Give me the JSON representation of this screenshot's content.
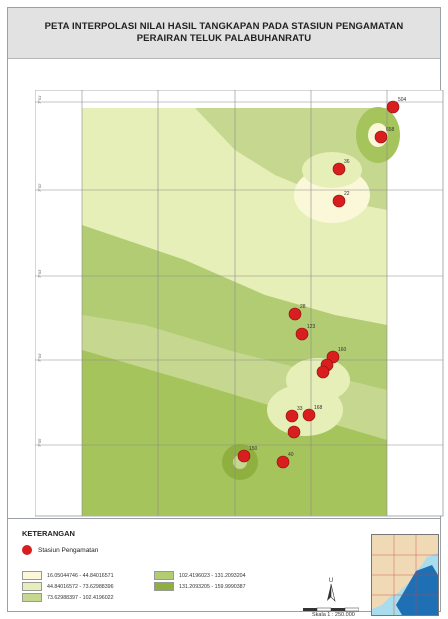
{
  "title": {
    "line1": "PETA INTERPOLASI NILAI HASIL TANGKAPAN PADA STASIUN PENGAMATAN",
    "line2": "PERAIRAN TELUK PALABUHANRATU"
  },
  "coords": [
    "7°01'",
    "7°02'",
    "7°03'",
    "7°04'",
    "7°05'"
  ],
  "stations": [
    {
      "label": "504",
      "value": 504
    },
    {
      "label": "658",
      "value": 658
    },
    {
      "label": "36",
      "value": 36
    },
    {
      "label": "22",
      "value": 22
    },
    {
      "label": "28",
      "value": 28
    },
    {
      "label": "123",
      "value": 123
    },
    {
      "label": "160",
      "value": 160
    },
    {
      "label": "",
      "value": null
    },
    {
      "label": "",
      "value": null
    },
    {
      "label": "168",
      "value": 168
    },
    {
      "label": "33",
      "value": 33
    },
    {
      "label": "",
      "value": null
    },
    {
      "label": "150",
      "value": 150
    },
    {
      "label": "40",
      "value": 40
    }
  ],
  "legend": {
    "title": "KETERANGAN",
    "station_label": "Stasiun Pengamatan",
    "classes": [
      {
        "label": "16.05044746 - 44.84016571",
        "color": "#fbf7d9"
      },
      {
        "label": "44.84016572 - 73.62988396",
        "color": "#e6efb8"
      },
      {
        "label": "73.62988397 - 102.4196022",
        "color": "#c6d88f"
      },
      {
        "label": "102.4196023 - 131.2093204",
        "color": "#b2cc74"
      },
      {
        "label": "131.2093205 - 159.9990387",
        "color": "#8fb03f"
      }
    ],
    "north_letter": "U",
    "scale": "Skala 1 : 250.000"
  },
  "colors": {
    "station_marker": "#d81e1e"
  }
}
